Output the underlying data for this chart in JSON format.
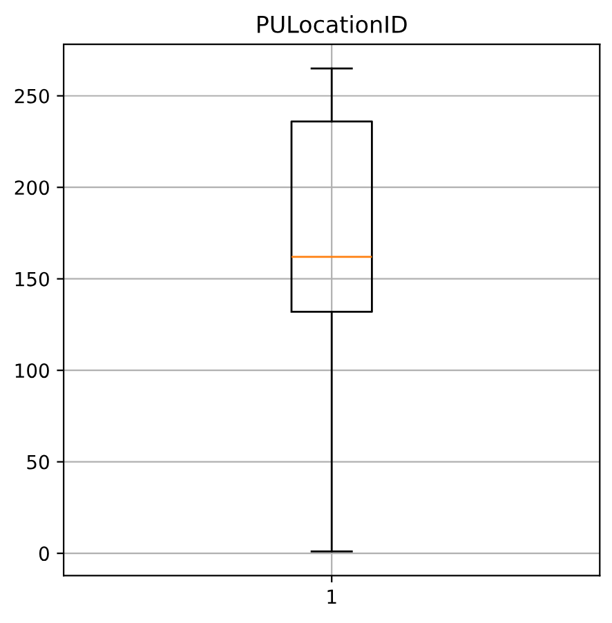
{
  "chart_data": {
    "type": "box",
    "title": "PULocationID",
    "categories": [
      "1"
    ],
    "boxes": [
      {
        "low": 1,
        "q1": 132,
        "median": 162,
        "q3": 236,
        "high": 265
      }
    ],
    "ylim": [
      -12.2,
      278.2
    ],
    "yticks": [
      0,
      50,
      100,
      150,
      200,
      250
    ],
    "grid": true
  }
}
